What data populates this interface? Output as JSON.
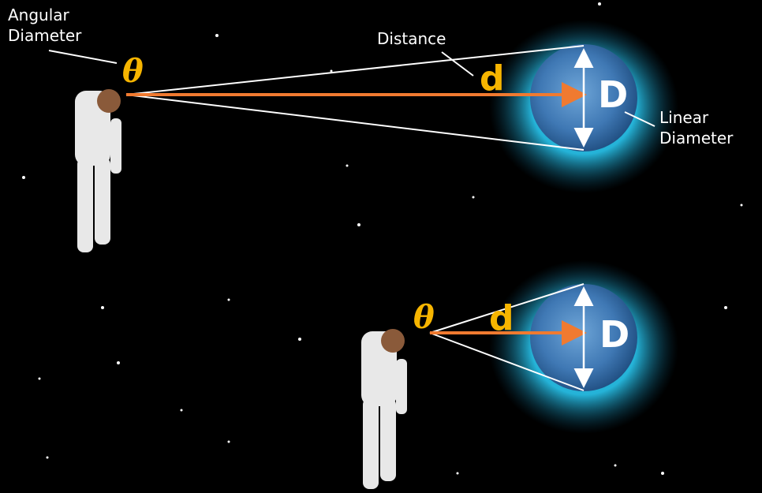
{
  "labels": {
    "angular_diameter": [
      "Angular",
      "Diameter"
    ],
    "distance": "Distance",
    "linear_diameter": [
      "Linear",
      "Diameter"
    ]
  },
  "scenes": [
    {
      "theta": "θ",
      "d": "d",
      "D": "D"
    },
    {
      "theta": "θ",
      "d": "d",
      "D": "D"
    }
  ]
}
